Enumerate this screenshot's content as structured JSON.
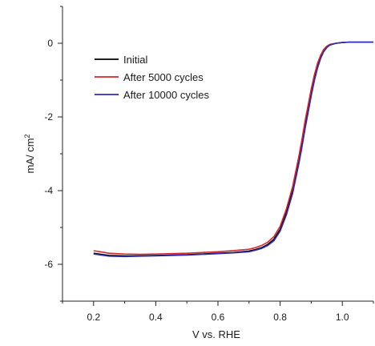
{
  "chart_data": {
    "type": "line",
    "xlabel": "V vs. RHE",
    "ylabel": "mA/ cm",
    "ylabel_superscript": "2",
    "xlim": [
      0.1,
      1.1
    ],
    "ylim": [
      -7,
      1
    ],
    "xticks": [
      {
        "v": 0.2,
        "label": "0.2"
      },
      {
        "v": 0.4,
        "label": "0.4"
      },
      {
        "v": 0.6,
        "label": "0.6"
      },
      {
        "v": 0.8,
        "label": "0.8"
      },
      {
        "v": 1.0,
        "label": "1.0"
      }
    ],
    "yticks": [
      {
        "v": 0,
        "label": "0"
      },
      {
        "v": -2,
        "label": "-2"
      },
      {
        "v": -4,
        "label": "-4"
      },
      {
        "v": -6,
        "label": "-6"
      }
    ],
    "grid": false,
    "legend_position": "top-left",
    "series": [
      {
        "name": "Initial",
        "color": "#000000",
        "x": [
          0.2,
          0.25,
          0.3,
          0.35,
          0.4,
          0.45,
          0.5,
          0.55,
          0.6,
          0.65,
          0.7,
          0.72,
          0.74,
          0.76,
          0.78,
          0.8,
          0.82,
          0.84,
          0.86,
          0.87,
          0.88,
          0.89,
          0.9,
          0.91,
          0.92,
          0.93,
          0.94,
          0.95,
          0.96,
          0.98,
          1.0,
          1.02,
          1.04,
          1.06,
          1.08,
          1.1
        ],
        "y": [
          -5.7,
          -5.76,
          -5.77,
          -5.77,
          -5.76,
          -5.75,
          -5.74,
          -5.72,
          -5.7,
          -5.68,
          -5.64,
          -5.6,
          -5.55,
          -5.46,
          -5.32,
          -5.05,
          -4.6,
          -4.0,
          -3.2,
          -2.75,
          -2.25,
          -1.8,
          -1.35,
          -0.95,
          -0.62,
          -0.38,
          -0.2,
          -0.1,
          -0.04,
          0.0,
          0.02,
          0.03,
          0.03,
          0.03,
          0.03,
          0.03
        ]
      },
      {
        "name": "After 5000 cycles",
        "color": "#d62728",
        "x": [
          0.2,
          0.25,
          0.3,
          0.35,
          0.4,
          0.45,
          0.5,
          0.55,
          0.6,
          0.65,
          0.7,
          0.72,
          0.74,
          0.76,
          0.78,
          0.8,
          0.82,
          0.84,
          0.86,
          0.87,
          0.88,
          0.89,
          0.9,
          0.91,
          0.92,
          0.93,
          0.94,
          0.95,
          0.96,
          0.98,
          1.0,
          1.02,
          1.04,
          1.06,
          1.08,
          1.1
        ],
        "y": [
          -5.63,
          -5.7,
          -5.72,
          -5.73,
          -5.72,
          -5.71,
          -5.7,
          -5.68,
          -5.66,
          -5.63,
          -5.59,
          -5.55,
          -5.49,
          -5.4,
          -5.25,
          -4.97,
          -4.5,
          -3.9,
          -3.08,
          -2.62,
          -2.12,
          -1.68,
          -1.24,
          -0.86,
          -0.55,
          -0.33,
          -0.17,
          -0.08,
          -0.03,
          0.0,
          0.02,
          0.03,
          0.03,
          0.03,
          0.03,
          0.03
        ]
      },
      {
        "name": "After 10000 cycles",
        "color": "#2b2bb8",
        "x": [
          0.2,
          0.25,
          0.3,
          0.35,
          0.4,
          0.45,
          0.5,
          0.55,
          0.6,
          0.65,
          0.7,
          0.72,
          0.74,
          0.76,
          0.78,
          0.8,
          0.82,
          0.84,
          0.86,
          0.87,
          0.88,
          0.89,
          0.9,
          0.91,
          0.92,
          0.93,
          0.94,
          0.95,
          0.96,
          0.98,
          1.0,
          1.02,
          1.04,
          1.06,
          1.08,
          1.1
        ],
        "y": [
          -5.72,
          -5.78,
          -5.79,
          -5.78,
          -5.77,
          -5.76,
          -5.75,
          -5.73,
          -5.71,
          -5.69,
          -5.66,
          -5.62,
          -5.57,
          -5.49,
          -5.36,
          -5.1,
          -4.66,
          -4.08,
          -3.28,
          -2.83,
          -2.33,
          -1.88,
          -1.43,
          -1.02,
          -0.68,
          -0.42,
          -0.23,
          -0.12,
          -0.05,
          0.0,
          0.02,
          0.03,
          0.03,
          0.03,
          0.03,
          0.03
        ]
      }
    ]
  }
}
